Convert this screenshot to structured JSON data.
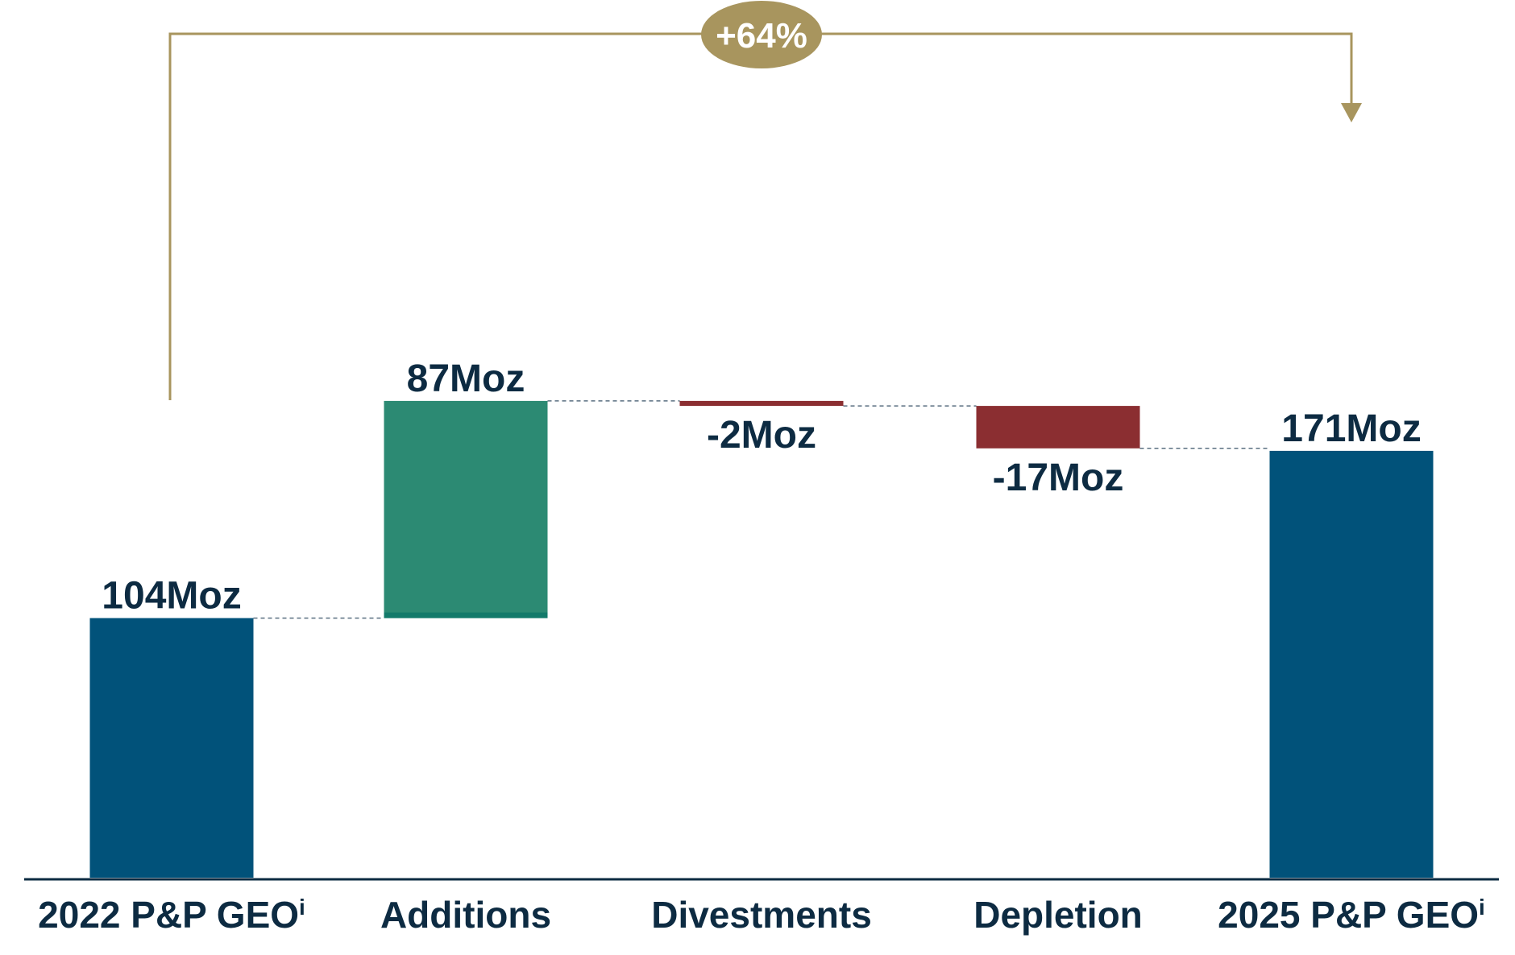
{
  "chart_data": {
    "type": "waterfall",
    "categories": [
      "2022 P&P GEO",
      "Additions",
      "Divestments",
      "Depletion",
      "2025 P&P GEO"
    ],
    "category_superscripts": [
      "i",
      "",
      "",
      "",
      "i"
    ],
    "values": [
      104,
      87,
      -2,
      -17,
      171
    ],
    "kinds": [
      "total",
      "increase",
      "decrease",
      "decrease",
      "total"
    ],
    "data_labels": [
      "104Moz",
      "87Moz",
      "-2Moz",
      "-17Moz",
      "171Moz"
    ],
    "unit": "Moz",
    "ylim": [
      0,
      200
    ],
    "grid": false,
    "change_annotation": {
      "text": "+64%",
      "from_category": "2022 P&P GEO",
      "to_category": "2025 P&P GEO"
    },
    "colors": {
      "total": "#01527a",
      "increase": "#2c8a73",
      "increase_base": "#137a6a",
      "decrease": "#8b2e31",
      "label_text": "#0d2b42",
      "annotation": "#a8955e",
      "badge_text": "#ffffff",
      "axis": "#0d2b42",
      "connector": "#5a6f80"
    }
  }
}
